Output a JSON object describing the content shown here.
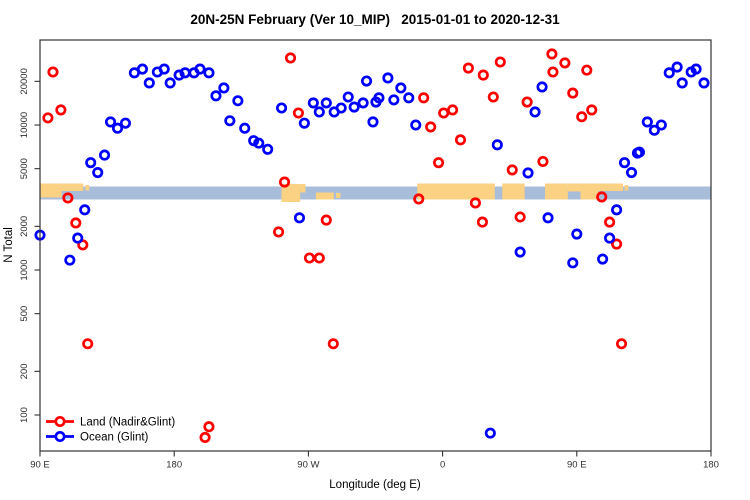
{
  "title": "20N-25N February (Ver 10_MIP)   2015-01-01 to 2020-12-31",
  "plot": {
    "x_axis": {
      "label": "Longitude (deg E)",
      "ticks": [
        {
          "value": 90,
          "label": "90 E"
        },
        {
          "value": 180,
          "label": "180"
        },
        {
          "value": 270,
          "label": "90 W"
        },
        {
          "value": 360,
          "label": "0"
        },
        {
          "value": 450,
          "label": "90 E"
        },
        {
          "value": 540,
          "label": "180"
        }
      ]
    },
    "y_axis": {
      "label": "N Total",
      "ticks": [
        {
          "value": 100,
          "label": "100"
        },
        {
          "value": 200,
          "label": "200"
        },
        {
          "value": 500,
          "label": "500"
        },
        {
          "value": 1000,
          "label": "1000"
        },
        {
          "value": 2000,
          "label": "2000"
        },
        {
          "value": 5000,
          "label": "5000"
        },
        {
          "value": 10000,
          "label": "10000"
        },
        {
          "value": 20000,
          "label": "20000"
        }
      ]
    },
    "legend": {
      "items": [
        {
          "label": "Land (Nadir&Glint)",
          "color": "#ff0000"
        },
        {
          "label": "Ocean (Glint)",
          "color": "#0000ff"
        }
      ]
    }
  },
  "map_strip": {
    "ocean_color": "#a8bdda",
    "land_color": "#fbd183",
    "band_y": [
      186.5,
      199.5
    ],
    "land_patches": [
      {
        "lon": [
          90,
          104.5
        ],
        "y": [
          183.5,
          197.5
        ]
      },
      {
        "lon": [
          104.5,
          119
        ],
        "y": [
          183.5,
          191
        ]
      },
      {
        "lon": [
          120.5,
          123
        ],
        "y": [
          185,
          190.5
        ]
      },
      {
        "lon": [
          252,
          264.5
        ],
        "y": [
          184,
          202
        ]
      },
      {
        "lon": [
          264.5,
          268
        ],
        "y": [
          184,
          192.5
        ]
      },
      {
        "lon": [
          275,
          287
        ],
        "y": [
          192.5,
          199.5
        ]
      },
      {
        "lon": [
          288.5,
          291.5
        ],
        "y": [
          193,
          198
        ]
      },
      {
        "lon": [
          343,
          395
        ],
        "y": [
          183.5,
          199.5
        ]
      },
      {
        "lon": [
          400,
          415
        ],
        "y": [
          183.5,
          199.5
        ]
      },
      {
        "lon": [
          428.7,
          444
        ],
        "y": [
          183.5,
          199.5
        ]
      },
      {
        "lon": [
          444,
          452.5
        ],
        "y": [
          183.5,
          191.5
        ]
      },
      {
        "lon": [
          452.5,
          464.5
        ],
        "y": [
          183.5,
          199.5
        ]
      },
      {
        "lon": [
          464.5,
          481
        ],
        "y": [
          183.5,
          191
        ]
      },
      {
        "lon": [
          482,
          484.5
        ],
        "y": [
          185,
          190.5
        ]
      }
    ]
  },
  "chart_data": {
    "type": "scatter",
    "title": "20N-25N February (Ver 10_MIP)   2015-01-01 to 2020-12-31",
    "xlabel": "Longitude (deg E)",
    "ylabel": "N Total",
    "x_range": [
      90,
      540
    ],
    "y_scale": "log",
    "y_ticks": [
      100,
      200,
      500,
      1000,
      2000,
      5000,
      10000,
      20000
    ],
    "grid": false,
    "legend_position": "bottom-left",
    "series": [
      {
        "name": "Land (Nadir&Glint)",
        "color": "#ff0000",
        "points": [
          [
            98.7,
            23200
          ],
          [
            95.3,
            11200
          ],
          [
            104,
            12700
          ],
          [
            258,
            29000
          ],
          [
            263.3,
            12100
          ],
          [
            347.3,
            15400
          ],
          [
            377.3,
            24700
          ],
          [
            387.3,
            22100
          ],
          [
            398.7,
            27200
          ],
          [
            433.3,
            30900
          ],
          [
            434,
            23200
          ],
          [
            394,
            15600
          ],
          [
            416.7,
            14400
          ],
          [
            360.7,
            12100
          ],
          [
            366.7,
            12700
          ],
          [
            352,
            9700
          ],
          [
            372,
            7900
          ],
          [
            442,
            26800
          ],
          [
            456.7,
            23900
          ],
          [
            447.3,
            16600
          ],
          [
            460,
            12700
          ],
          [
            453.3,
            11400
          ],
          [
            108.7,
            3140
          ],
          [
            114,
            2110
          ],
          [
            118.7,
            1490
          ],
          [
            254,
            4040
          ],
          [
            282,
            2210
          ],
          [
            250,
            1830
          ],
          [
            270.7,
            1210
          ],
          [
            277.3,
            1210
          ],
          [
            357.3,
            5500
          ],
          [
            406.7,
            4900
          ],
          [
            427.3,
            5600
          ],
          [
            344,
            3090
          ],
          [
            382,
            2900
          ],
          [
            386.7,
            2140
          ],
          [
            412,
            2320
          ],
          [
            466.7,
            3190
          ],
          [
            472,
            2140
          ],
          [
            476.7,
            1510
          ],
          [
            122,
            310
          ],
          [
            286.7,
            310
          ],
          [
            480,
            310
          ],
          [
            203.3,
            83
          ],
          [
            200.7,
            70
          ]
        ]
      },
      {
        "name": "Ocean (Glint)",
        "color": "#0000ff",
        "points": [
          [
            153.3,
            22900
          ],
          [
            158.7,
            24300
          ],
          [
            168.7,
            23200
          ],
          [
            173.3,
            24300
          ],
          [
            163.3,
            19500
          ],
          [
            177.3,
            19500
          ],
          [
            183.3,
            22100
          ],
          [
            187.3,
            22900
          ],
          [
            193.3,
            22900
          ],
          [
            197.3,
            24300
          ],
          [
            137.3,
            10500
          ],
          [
            142,
            9500
          ],
          [
            147.3,
            10300
          ],
          [
            203.3,
            22900
          ],
          [
            208,
            15900
          ],
          [
            213.3,
            18000
          ],
          [
            222.7,
            14700
          ],
          [
            217.3,
            10700
          ],
          [
            227.3,
            9500
          ],
          [
            233.3,
            7800
          ],
          [
            236.7,
            7500
          ],
          [
            242.7,
            6800
          ],
          [
            252,
            13100
          ],
          [
            267.3,
            10300
          ],
          [
            273.3,
            14200
          ],
          [
            277.3,
            12300
          ],
          [
            282,
            14200
          ],
          [
            287.3,
            12300
          ],
          [
            292,
            13100
          ],
          [
            296.7,
            15600
          ],
          [
            300.7,
            13300
          ],
          [
            306.7,
            14200
          ],
          [
            309,
            20100
          ],
          [
            313.3,
            10500
          ],
          [
            315.3,
            14400
          ],
          [
            323.3,
            21100
          ],
          [
            332,
            18000
          ],
          [
            317.3,
            15400
          ],
          [
            327.3,
            14900
          ],
          [
            337.3,
            15400
          ],
          [
            426.7,
            18300
          ],
          [
            422,
            12300
          ],
          [
            342,
            10000
          ],
          [
            396.7,
            7300
          ],
          [
            512,
            22900
          ],
          [
            517.3,
            25100
          ],
          [
            526.7,
            23200
          ],
          [
            530,
            24300
          ],
          [
            520.7,
            19500
          ],
          [
            535.3,
            19500
          ],
          [
            497.3,
            10500
          ],
          [
            502,
            9200
          ],
          [
            506.7,
            10000
          ],
          [
            492,
            6500
          ],
          [
            133.3,
            6200
          ],
          [
            124,
            5500
          ],
          [
            128.7,
            4700
          ],
          [
            120,
            2600
          ],
          [
            90,
            1740
          ],
          [
            115.3,
            1660
          ],
          [
            110,
            1170
          ],
          [
            264,
            2290
          ],
          [
            417.3,
            4670
          ],
          [
            430.7,
            2290
          ],
          [
            412,
            1330
          ],
          [
            490.7,
            6400
          ],
          [
            482,
            5500
          ],
          [
            486.7,
            4700
          ],
          [
            476.7,
            2600
          ],
          [
            450,
            1770
          ],
          [
            472,
            1660
          ],
          [
            447.3,
            1120
          ],
          [
            467.3,
            1190
          ],
          [
            392,
            75
          ]
        ]
      }
    ]
  }
}
